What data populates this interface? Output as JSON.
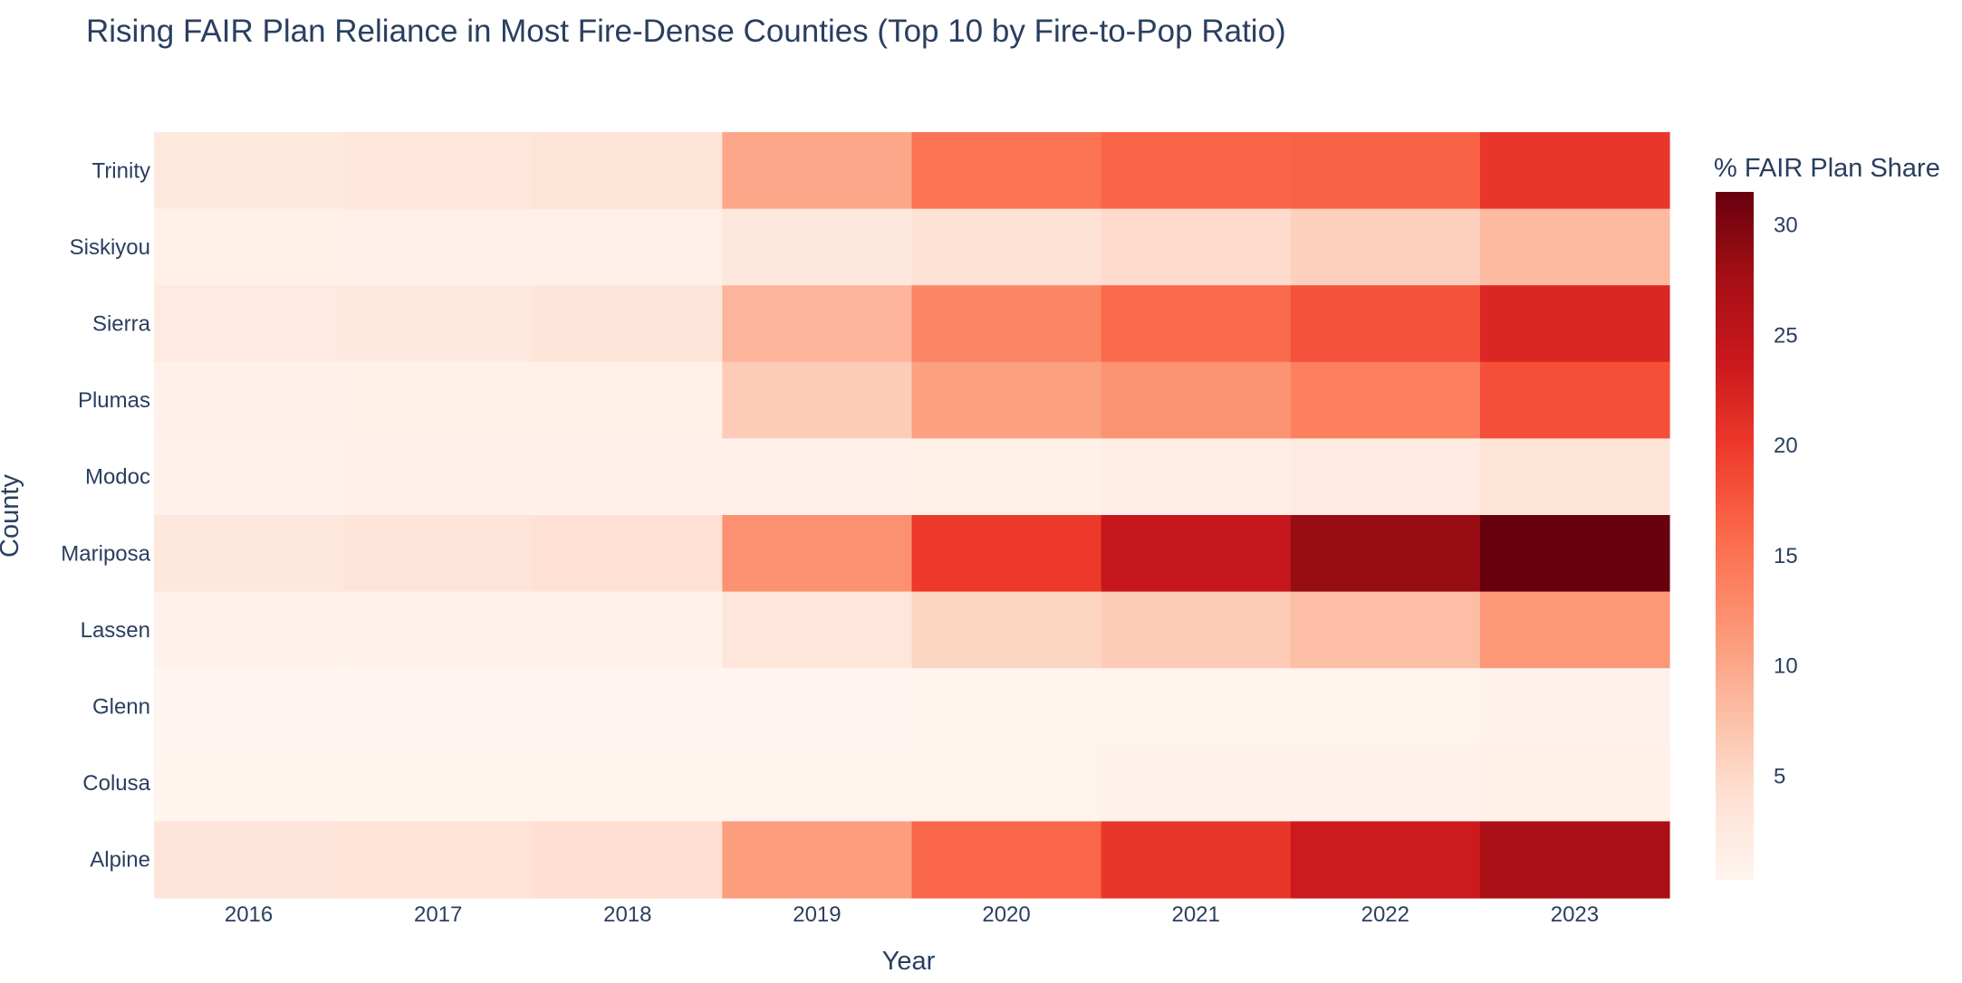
{
  "chart_data": {
    "type": "heatmap",
    "title": "Rising FAIR Plan Reliance in Most Fire-Dense Counties (Top 10 by Fire-to-Pop Ratio)",
    "xlabel": "Year",
    "ylabel": "County",
    "x": [
      "2016",
      "2017",
      "2018",
      "2019",
      "2020",
      "2021",
      "2022",
      "2023"
    ],
    "y": [
      "Trinity",
      "Siskiyou",
      "Sierra",
      "Plumas",
      "Modoc",
      "Mariposa",
      "Lassen",
      "Glenn",
      "Colusa",
      "Alpine"
    ],
    "z": [
      [
        2.6,
        3.1,
        3.6,
        10.0,
        15.0,
        16.3,
        16.5,
        20.4
      ],
      [
        1.3,
        1.4,
        1.4,
        2.9,
        3.8,
        4.7,
        5.9,
        8.2
      ],
      [
        2.3,
        2.6,
        3.3,
        8.7,
        13.3,
        15.8,
        17.9,
        22.0
      ],
      [
        1.2,
        1.3,
        1.3,
        6.3,
        10.7,
        11.8,
        13.8,
        18.1
      ],
      [
        1.0,
        1.1,
        1.1,
        1.2,
        1.3,
        1.6,
        2.2,
        3.6
      ],
      [
        2.8,
        3.4,
        4.0,
        12.1,
        20.0,
        24.2,
        28.4,
        31.5
      ],
      [
        0.8,
        0.8,
        0.9,
        3.1,
        5.4,
        6.4,
        7.7,
        11.5
      ],
      [
        0.3,
        0.3,
        0.3,
        0.4,
        0.5,
        0.6,
        0.6,
        0.8
      ],
      [
        0.5,
        0.5,
        0.5,
        0.6,
        0.7,
        0.9,
        1.0,
        1.3
      ],
      [
        3.2,
        3.7,
        4.3,
        11.0,
        16.2,
        20.4,
        23.5,
        27.0
      ]
    ],
    "zrange": [
      0.3,
      31.5
    ],
    "colorscale": "Reds",
    "colorbar": {
      "title": "% FAIR Plan Share",
      "ticks": [
        5,
        10,
        15,
        20,
        25,
        30
      ]
    },
    "grid": false
  }
}
